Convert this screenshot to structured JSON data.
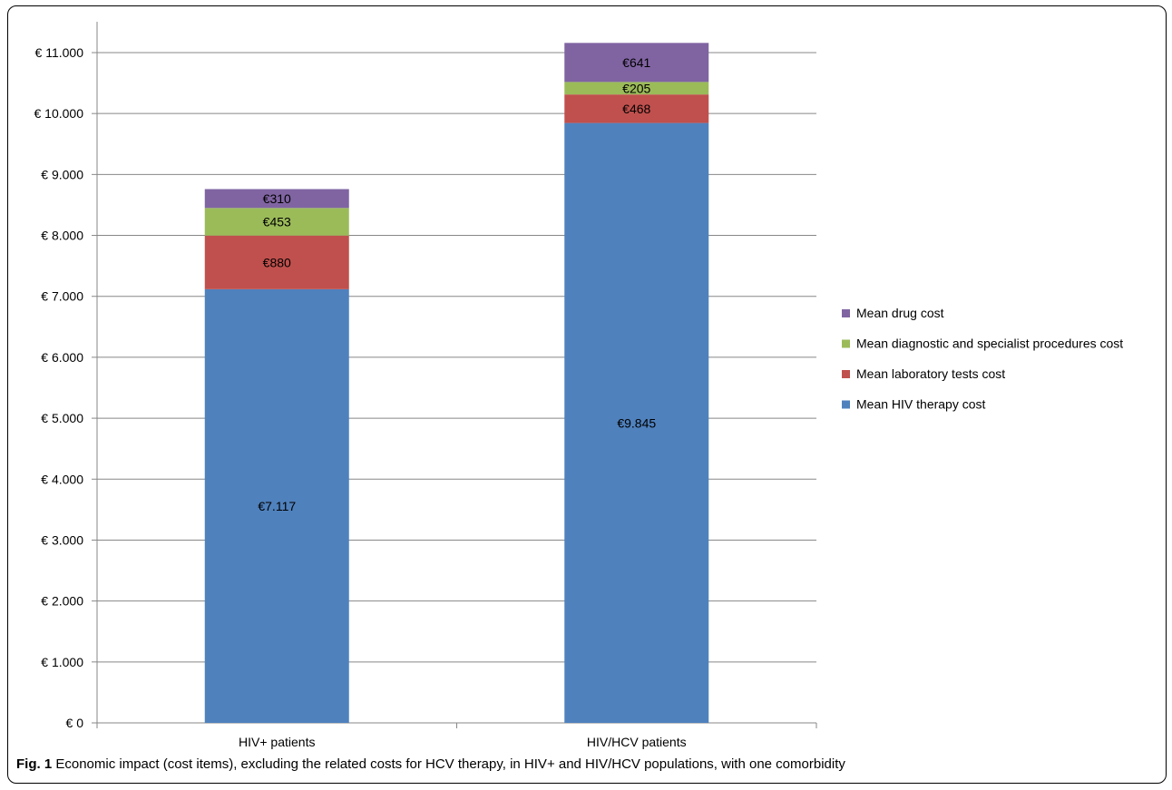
{
  "caption": {
    "label": "Fig. 1",
    "text": "Economic impact (cost items), excluding the related costs for HCV therapy, in HIV+ and HIV/HCV populations, with one comorbidity"
  },
  "chart_data": {
    "type": "bar",
    "stacked": true,
    "categories": [
      "HIV+ patients",
      "HIV/HCV patients"
    ],
    "ylim": [
      0,
      11000
    ],
    "ytick_step": 1000,
    "ytick_labels": [
      "€ 0",
      "€ 1.000",
      "€ 2.000",
      "€ 3.000",
      "€ 4.000",
      "€ 5.000",
      "€ 6.000",
      "€ 7.000",
      "€ 8.000",
      "€ 9.000",
      "€ 10.000",
      "€ 11.000"
    ],
    "grid": true,
    "legend_position": "right",
    "series": [
      {
        "name": "Mean HIV therapy cost",
        "color": "#4f81bd",
        "values": [
          7117,
          9845
        ],
        "labels": [
          "€7.117",
          "€9.845"
        ]
      },
      {
        "name": "Mean laboratory tests cost",
        "color": "#c0504d",
        "values": [
          880,
          468
        ],
        "labels": [
          "€880",
          "€468"
        ]
      },
      {
        "name": "Mean diagnostic and specialist procedures cost",
        "color": "#9bbb59",
        "values": [
          453,
          205
        ],
        "labels": [
          "€453",
          "€205"
        ]
      },
      {
        "name": "Mean drug cost",
        "color": "#8064a2",
        "values": [
          310,
          641
        ],
        "labels": [
          "€310",
          "€641"
        ]
      }
    ]
  }
}
